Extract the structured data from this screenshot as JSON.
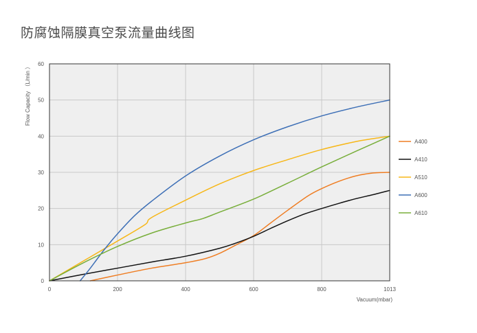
{
  "chart_data": {
    "type": "line",
    "title": "防腐蚀隔膜真空泵流量曲线图",
    "xlabel": "Vacuum(mbar)",
    "ylabel": "Flow Capacity （L/min ）",
    "xlim": [
      0,
      1000
    ],
    "ylim": [
      0,
      60
    ],
    "x_ticks": [
      0,
      200,
      400,
      600,
      800,
      1000
    ],
    "x_tick_labels": [
      "0",
      "200",
      "400",
      "600",
      "800",
      "1013"
    ],
    "y_ticks": [
      0,
      10,
      20,
      30,
      40,
      50,
      60
    ],
    "grid": true,
    "legend": "right",
    "colors": {
      "plot_bg": "#efefef",
      "grid": "#c8c8c8",
      "frame": "#333333"
    },
    "series": [
      {
        "name": "A400",
        "color": "#ef7d22",
        "points": [
          [
            120,
            0
          ],
          [
            200,
            1.6
          ],
          [
            300,
            3.5
          ],
          [
            400,
            5
          ],
          [
            460,
            6.2
          ],
          [
            500,
            7.6
          ],
          [
            550,
            10
          ],
          [
            600,
            12.5
          ],
          [
            650,
            16
          ],
          [
            700,
            19.5
          ],
          [
            760,
            23.5
          ],
          [
            800,
            25.5
          ],
          [
            850,
            27.5
          ],
          [
            900,
            29
          ],
          [
            950,
            29.8
          ],
          [
            1000,
            30
          ]
        ]
      },
      {
        "name": "A410",
        "color": "#111111",
        "points": [
          [
            0,
            0
          ],
          [
            100,
            1.8
          ],
          [
            200,
            3.5
          ],
          [
            300,
            5.2
          ],
          [
            400,
            6.8
          ],
          [
            500,
            9
          ],
          [
            550,
            10.5
          ],
          [
            600,
            12.3
          ],
          [
            650,
            14.5
          ],
          [
            700,
            16.6
          ],
          [
            750,
            18.5
          ],
          [
            800,
            20
          ],
          [
            850,
            21.4
          ],
          [
            900,
            22.7
          ],
          [
            950,
            23.8
          ],
          [
            1000,
            25
          ]
        ]
      },
      {
        "name": "A510",
        "color": "#f7b718",
        "points": [
          [
            0,
            0
          ],
          [
            100,
            5.5
          ],
          [
            200,
            11
          ],
          [
            280,
            15.5
          ],
          [
            300,
            17.5
          ],
          [
            400,
            22.3
          ],
          [
            500,
            26.8
          ],
          [
            600,
            30.5
          ],
          [
            700,
            33.5
          ],
          [
            800,
            36.3
          ],
          [
            900,
            38.5
          ],
          [
            950,
            39.3
          ],
          [
            1000,
            40
          ]
        ]
      },
      {
        "name": "A600",
        "color": "#3d6fb6",
        "points": [
          [
            90,
            0
          ],
          [
            120,
            3.5
          ],
          [
            160,
            8.5
          ],
          [
            200,
            13
          ],
          [
            250,
            18
          ],
          [
            300,
            22
          ],
          [
            400,
            29
          ],
          [
            500,
            34.5
          ],
          [
            600,
            39
          ],
          [
            700,
            42.6
          ],
          [
            800,
            45.6
          ],
          [
            900,
            48
          ],
          [
            1000,
            50
          ]
        ]
      },
      {
        "name": "A610",
        "color": "#78ae3a",
        "points": [
          [
            0,
            0
          ],
          [
            100,
            5
          ],
          [
            200,
            9.5
          ],
          [
            300,
            13.2
          ],
          [
            400,
            16
          ],
          [
            450,
            17.2
          ],
          [
            500,
            19
          ],
          [
            600,
            22.6
          ],
          [
            700,
            27
          ],
          [
            800,
            31.5
          ],
          [
            900,
            35.8
          ],
          [
            1000,
            40
          ]
        ]
      }
    ]
  }
}
